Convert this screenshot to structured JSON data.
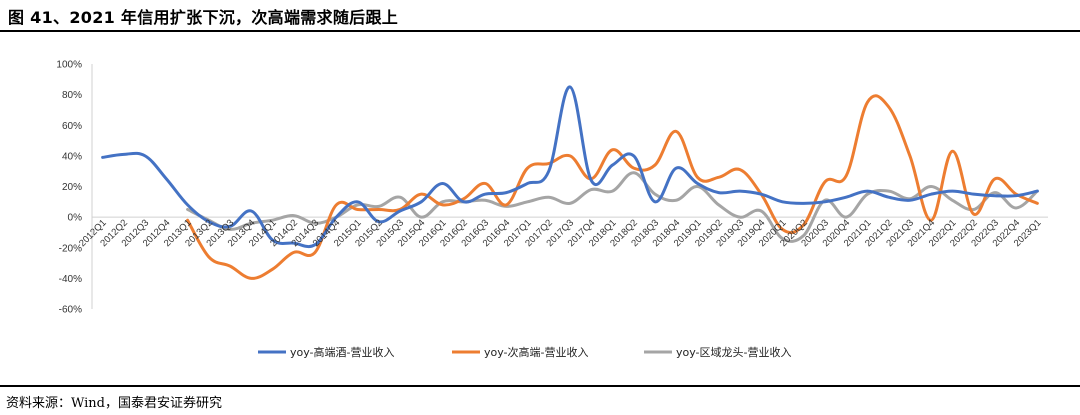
{
  "figure": {
    "title": "图 41、2021 年信用扩张下沉，次高端需求随后跟上",
    "source": "资料来源：Wind，国泰君安证券研究"
  },
  "chart_data": {
    "type": "line",
    "grid": false,
    "legend_position": "bottom",
    "ylim": [
      -60,
      100
    ],
    "yticks": [
      100,
      80,
      60,
      40,
      20,
      0,
      -20,
      -40,
      -60
    ],
    "ytick_labels": [
      "100%",
      "80%",
      "60%",
      "40%",
      "20%",
      "0%",
      "-20%",
      "-40%",
      "-60%"
    ],
    "categories": [
      "2012Q1",
      "2012Q2",
      "2012Q3",
      "2012Q4",
      "2013Q1",
      "2013Q2",
      "2013Q3",
      "2013Q4",
      "2014Q1",
      "2014Q2",
      "2014Q3",
      "2014Q4",
      "2015Q1",
      "2015Q2",
      "2015Q3",
      "2015Q4",
      "2016Q1",
      "2016Q2",
      "2016Q3",
      "2016Q4",
      "2017Q1",
      "2017Q2",
      "2017Q3",
      "2017Q4",
      "2018Q1",
      "2018Q2",
      "2018Q3",
      "2018Q4",
      "2019Q1",
      "2019Q2",
      "2019Q3",
      "2019Q4",
      "2020Q1",
      "2020Q2",
      "2020Q3",
      "2020Q4",
      "2021Q1",
      "2021Q2",
      "2021Q3",
      "2021Q4",
      "2022Q1",
      "2022Q2",
      "2022Q3",
      "2022Q4",
      "2023Q1"
    ],
    "series": [
      {
        "name": "yoy-高端酒-营业收入",
        "color": "#4472C4",
        "values": [
          39,
          41,
          40,
          25,
          8,
          -3,
          -6,
          4,
          -15,
          -17,
          -18,
          0,
          10,
          -3,
          4,
          10,
          22,
          10,
          15,
          16,
          22,
          30,
          85,
          24,
          34,
          40,
          10,
          32,
          22,
          16,
          17,
          15,
          10,
          9,
          10,
          13,
          17,
          13,
          11,
          15,
          17,
          15,
          14,
          14,
          17
        ]
      },
      {
        "name": "yoy-次高端-营业收入",
        "color": "#ED7D31",
        "values": [
          null,
          null,
          null,
          null,
          -2,
          -26,
          -32,
          -40,
          -34,
          -23,
          -23,
          8,
          5,
          5,
          5,
          15,
          8,
          12,
          22,
          8,
          32,
          35,
          40,
          25,
          44,
          32,
          34,
          56,
          26,
          26,
          31,
          15,
          -8,
          -5,
          23,
          27,
          75,
          72,
          40,
          -2,
          43,
          2,
          25,
          15,
          9
        ]
      },
      {
        "name": "yoy-区域龙头-营业收入",
        "color": "#A5A5A5",
        "values": [
          null,
          null,
          null,
          null,
          5,
          -2,
          -8,
          -4,
          -2,
          1,
          -4,
          0,
          8,
          7,
          13,
          0,
          10,
          10,
          11,
          7,
          10,
          13,
          9,
          18,
          17,
          29,
          15,
          11,
          20,
          8,
          0,
          4,
          -14,
          -12,
          11,
          0,
          15,
          17,
          12,
          20,
          11,
          5,
          16,
          6,
          17
        ]
      }
    ]
  }
}
